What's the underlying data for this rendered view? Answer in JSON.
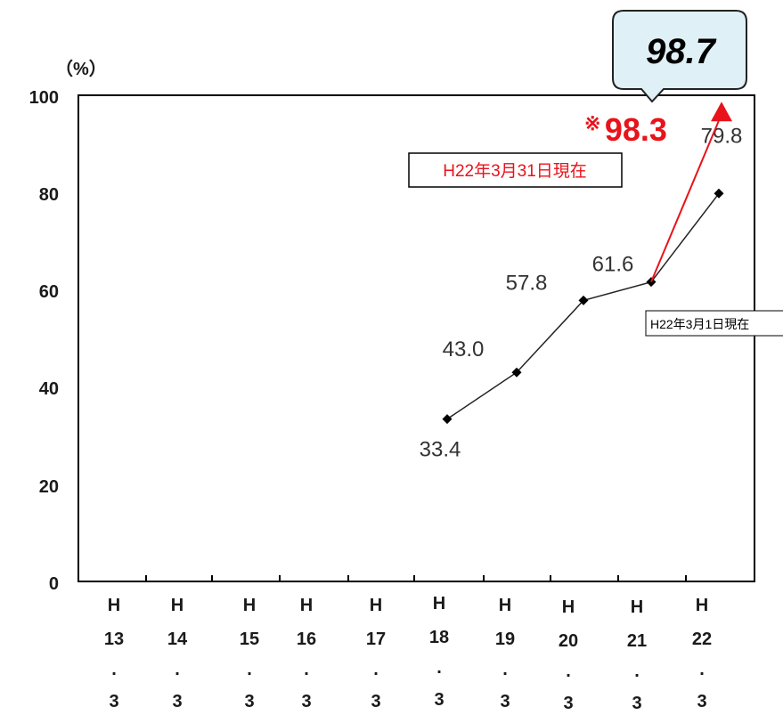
{
  "chart_data": {
    "type": "line",
    "unit_label": "（%）",
    "y_ticks": [
      "100",
      "80",
      "60",
      "40",
      "20",
      "0"
    ],
    "ylim": [
      0,
      100
    ],
    "categories": [
      {
        "era": "H",
        "year": "13",
        "dot": ".",
        "month": "3"
      },
      {
        "era": "H",
        "year": "14",
        "dot": ".",
        "month": "3"
      },
      {
        "era": "H",
        "year": "15",
        "dot": ".",
        "month": "3"
      },
      {
        "era": "H",
        "year": "16",
        "dot": ".",
        "month": "3"
      },
      {
        "era": "H",
        "year": "17",
        "dot": ".",
        "month": "3"
      },
      {
        "era": "H",
        "year": "18",
        "dot": ".",
        "month": "3"
      },
      {
        "era": "H",
        "year": "19",
        "dot": ".",
        "month": "3"
      },
      {
        "era": "H",
        "year": "20",
        "dot": ".",
        "month": "3"
      },
      {
        "era": "H",
        "year": "21",
        "dot": ".",
        "month": "3"
      },
      {
        "era": "H",
        "year": "22",
        "dot": ".",
        "month": "3"
      }
    ],
    "series": [
      {
        "values": [
          null,
          null,
          null,
          null,
          null,
          33.4,
          43.0,
          57.8,
          61.6,
          79.8
        ],
        "labels": [
          "",
          "",
          "",
          "",
          "",
          "33.4",
          "43.0",
          "57.8",
          "61.6",
          "79.8"
        ],
        "color": "#000000"
      }
    ],
    "point_note": "H22年3月1日現在",
    "highlight": {
      "value": 98.3,
      "prefix": "※",
      "label": "98.3",
      "from_category_index": 8,
      "to_category_index": 9,
      "note": "H22年3月31日現在",
      "color": "#e8131b"
    },
    "callout": {
      "label": "98.7",
      "fill": "#dff0f6",
      "border": "#222222"
    },
    "grid": false
  }
}
